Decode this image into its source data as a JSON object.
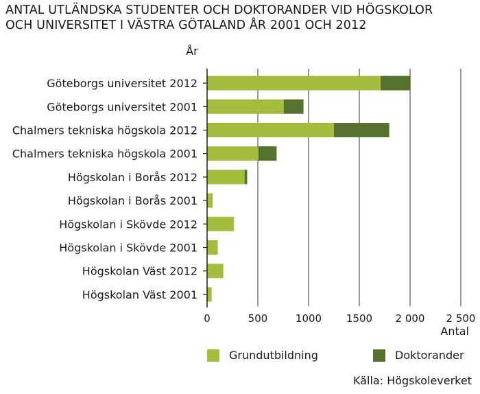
{
  "title_lines": [
    "ANTAL UTLÄNDSKA STUDENTER OCH DOKTORANDER VID HÖGSKOLOR",
    "OCH UNIVERSITET I VÄSTRA GÖTALAND ÅR 2001 OCH 2012"
  ],
  "source": "Källa: Högskoleverket",
  "colors": {
    "grund": "#a4bd3d",
    "dokt": "#56732e",
    "grid": "#333333",
    "axis": "#1a1a1a"
  },
  "chart_data": {
    "type": "bar",
    "orientation": "horizontal",
    "stacked": true,
    "ylabel": "År",
    "xlabel": "Antal",
    "xlim": [
      0,
      2500
    ],
    "xticks": [
      "0",
      "500",
      "1000",
      "1500",
      "2 000",
      "2 500"
    ],
    "grid": true,
    "legend_position": "bottom",
    "categories": [
      "Göteborgs universitet 2012",
      "Göteborgs universitet 2001",
      "Chalmers tekniska högskola 2012",
      "Chalmers tekniska högskola 2001",
      "Högskolan i Borås 2012",
      "Högskolan i Borås 2001",
      "Högskolan i Skövde 2012",
      "Högskolan i Skövde 2001",
      "Högskolan Väst 2012",
      "Högskolan Väst 2001"
    ],
    "series": [
      {
        "name": "Grundutbildning",
        "values": [
          1710,
          755,
          1250,
          505,
          370,
          55,
          265,
          105,
          160,
          45
        ]
      },
      {
        "name": "Doktorander",
        "values": [
          295,
          195,
          545,
          180,
          25,
          0,
          0,
          0,
          0,
          0
        ]
      }
    ]
  }
}
